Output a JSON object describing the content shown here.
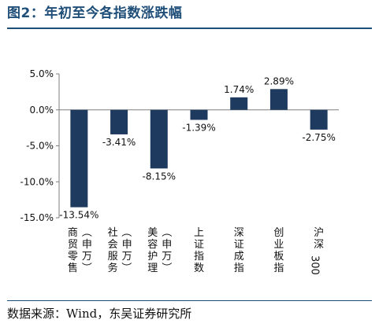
{
  "figure_title": "图2：年初至今各指数涨跌幅",
  "source_note": "数据来源：Wind，东吴证券研究所",
  "chart_data": {
    "type": "bar",
    "categories": [
      "商贸零售（申万）",
      "社会服务（申万）",
      "美容护理（申万）",
      "上证指数",
      "深证成指",
      "创业板指",
      "沪深300"
    ],
    "values": [
      -13.54,
      -3.41,
      -8.15,
      -1.39,
      1.74,
      2.89,
      -2.75
    ],
    "data_labels": [
      "-13.54%",
      "-3.41%",
      "-8.15%",
      "-1.39%",
      "1.74%",
      "2.89%",
      "-2.75%"
    ],
    "y_ticks": [
      5,
      0,
      -5,
      -10,
      -15
    ],
    "y_tick_labels": [
      "5.0%",
      "0.0%",
      "-5.0%",
      "-10.0%",
      "-15.0%"
    ],
    "ylim": [
      -15,
      5
    ],
    "title": "",
    "xlabel": "",
    "ylabel": "",
    "grid": false,
    "legend": "none",
    "bar_color": "#1f3a5f"
  }
}
